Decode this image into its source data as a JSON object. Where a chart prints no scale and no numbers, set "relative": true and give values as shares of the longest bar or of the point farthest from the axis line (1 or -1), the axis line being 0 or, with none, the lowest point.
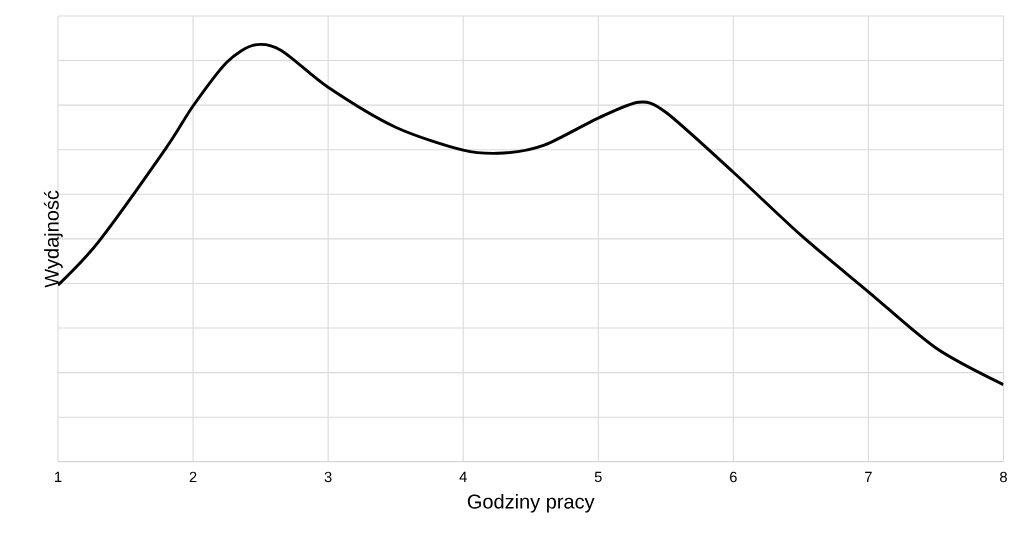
{
  "chart_data": {
    "type": "line",
    "xlabel": "Godziny pracy",
    "ylabel": "Wydajność",
    "relative": true,
    "grid": true,
    "color": "#000000",
    "x": [
      1,
      1.3,
      1.8,
      2,
      2.25,
      2.45,
      2.65,
      3,
      3.5,
      4,
      4.3,
      4.6,
      5,
      5.3,
      5.5,
      6,
      6.5,
      7,
      7.5,
      8
    ],
    "values": [
      0.424,
      0.528,
      0.753,
      0.854,
      0.959,
      1,
      0.988,
      0.899,
      0.803,
      0.748,
      0.741,
      0.76,
      0.825,
      0.863,
      0.839,
      0.695,
      0.544,
      0.408,
      0.273,
      0.185
    ],
    "xlim": [
      1,
      8
    ],
    "xticks": [
      1,
      2,
      3,
      4,
      5,
      6,
      7,
      8
    ]
  }
}
